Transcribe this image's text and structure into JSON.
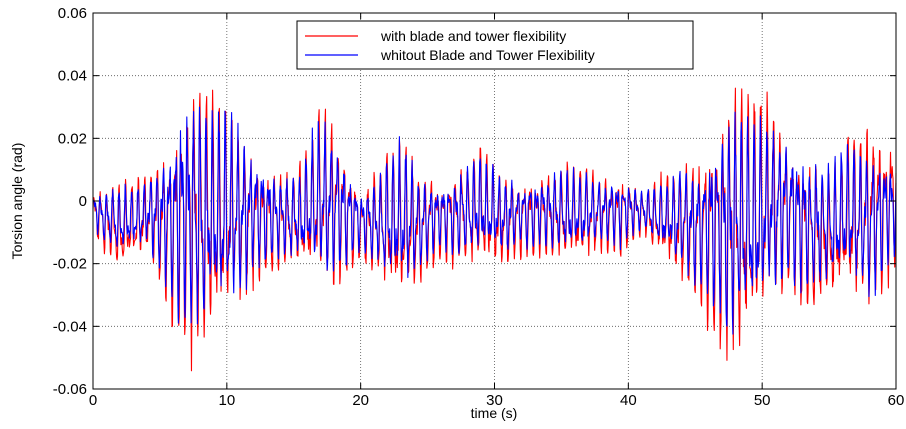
{
  "chart_data": {
    "type": "line",
    "title": "",
    "xlabel": "time (s)",
    "ylabel": "Torsion angle  (rad)",
    "xlim": [
      0,
      60
    ],
    "ylim": [
      -0.06,
      0.06
    ],
    "xticks": [
      0,
      10,
      20,
      30,
      40,
      50,
      60
    ],
    "xtick_labels": [
      "0",
      "10",
      "20",
      "30",
      "40",
      "50",
      "60"
    ],
    "yticks": [
      -0.06,
      -0.04,
      -0.02,
      0,
      0.02,
      0.04,
      0.06
    ],
    "ytick_labels": [
      "-0.06",
      "-0.04",
      "-0.02",
      "0",
      "0.02",
      "0.04",
      "0.06"
    ],
    "grid": true,
    "legend_position": "top-center",
    "series": [
      {
        "name": "with blade and tower flexibility",
        "color": "#ff0000",
        "envelope": {
          "x": [
            0,
            2,
            4,
            5.5,
            6.5,
            7.5,
            9,
            10.5,
            12,
            14,
            15.5,
            17,
            18.5,
            20,
            21.5,
            23,
            24.5,
            26,
            27.5,
            29,
            30.5,
            32,
            34,
            36,
            38,
            39.5,
            41,
            42.5,
            44,
            45.5,
            46.5,
            47.5,
            49,
            50.5,
            52,
            53.5,
            55,
            56.5,
            58,
            60
          ],
          "upper": [
            0.005,
            0.007,
            0.01,
            0.022,
            0.04,
            0.048,
            0.04,
            0.03,
            0.02,
            0.012,
            0.015,
            0.035,
            0.025,
            0.005,
            0.015,
            0.025,
            0.012,
            0.01,
            0.015,
            0.02,
            0.012,
            0.01,
            0.012,
            0.015,
            0.01,
            0.012,
            0.005,
            0.01,
            0.015,
            0.02,
            0.03,
            0.042,
            0.04,
            0.038,
            0.025,
            0.02,
            0.015,
            0.025,
            0.032,
            0.025
          ],
          "lower": [
            -0.012,
            -0.027,
            -0.02,
            -0.035,
            -0.055,
            -0.058,
            -0.05,
            -0.04,
            -0.03,
            -0.025,
            -0.027,
            -0.035,
            -0.03,
            -0.02,
            -0.03,
            -0.04,
            -0.03,
            -0.02,
            -0.025,
            -0.025,
            -0.025,
            -0.02,
            -0.02,
            -0.025,
            -0.018,
            -0.02,
            -0.012,
            -0.022,
            -0.03,
            -0.04,
            -0.05,
            -0.059,
            -0.055,
            -0.04,
            -0.032,
            -0.04,
            -0.038,
            -0.035,
            -0.04,
            -0.025
          ]
        }
      },
      {
        "name": "whitout Blade and Tower Flexibility",
        "color": "#0000ff",
        "envelope": {
          "x": [
            0,
            2,
            4,
            5.5,
            6.5,
            7.5,
            9,
            10.5,
            12,
            14,
            15.5,
            17,
            18.5,
            20,
            21.5,
            23,
            24.5,
            26,
            27.5,
            29,
            30.5,
            32,
            34,
            36,
            38,
            39.5,
            41,
            42.5,
            44,
            45.5,
            46.5,
            47.5,
            49,
            50.5,
            52,
            53.5,
            55,
            56.5,
            58,
            60
          ],
          "upper": [
            0.004,
            0.006,
            0.008,
            0.018,
            0.036,
            0.038,
            0.036,
            0.03,
            0.02,
            0.01,
            0.012,
            0.032,
            0.02,
            0.004,
            0.012,
            0.022,
            0.01,
            0.008,
            0.012,
            0.016,
            0.01,
            0.008,
            0.01,
            0.012,
            0.008,
            0.01,
            0.004,
            0.008,
            0.012,
            0.016,
            0.026,
            0.035,
            0.03,
            0.028,
            0.024,
            0.018,
            0.014,
            0.02,
            0.022,
            0.018
          ],
          "lower": [
            -0.01,
            -0.02,
            -0.016,
            -0.03,
            -0.042,
            -0.047,
            -0.045,
            -0.04,
            -0.025,
            -0.02,
            -0.022,
            -0.03,
            -0.026,
            -0.016,
            -0.025,
            -0.034,
            -0.025,
            -0.016,
            -0.02,
            -0.02,
            -0.02,
            -0.016,
            -0.016,
            -0.02,
            -0.014,
            -0.016,
            -0.01,
            -0.018,
            -0.025,
            -0.032,
            -0.04,
            -0.05,
            -0.045,
            -0.035,
            -0.028,
            -0.032,
            -0.03,
            -0.028,
            -0.035,
            -0.02
          ]
        }
      }
    ]
  }
}
